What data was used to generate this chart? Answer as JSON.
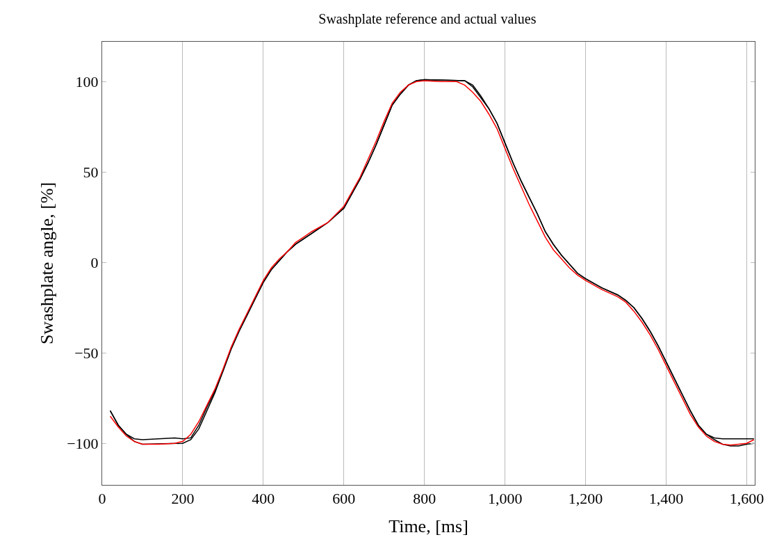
{
  "chart_data": {
    "type": "line",
    "title": "Swashplate reference and actual values",
    "xlabel": "Time, [ms]",
    "ylabel": "Swashplate angle, [%]",
    "xlim": [
      0,
      1620
    ],
    "xticks": [
      0,
      {
        "value": 200,
        "label": "200"
      },
      {
        "value": 400,
        "label": "400"
      },
      {
        "value": 600,
        "label": "600"
      },
      {
        "value": 800,
        "label": "800"
      },
      {
        "value": 1000,
        "label": "1,000"
      },
      {
        "value": 1200,
        "label": "1,200"
      },
      {
        "value": 1400,
        "label": "1,400"
      },
      {
        "value": 1600,
        "label": "1,600"
      }
    ],
    "ylim": [
      -123,
      122
    ],
    "yticks": [
      {
        "value": -100,
        "label": "−100"
      },
      {
        "value": -50,
        "label": "−50"
      },
      0,
      50,
      100
    ],
    "grid": "x",
    "marker": "none",
    "line_style": "solid",
    "series": [
      {
        "color": "#ff0000",
        "x": [
          20,
          40,
          60,
          80,
          100,
          140,
          180,
          200,
          220,
          240,
          260,
          280,
          300,
          320,
          340,
          360,
          380,
          400,
          420,
          440,
          460,
          480,
          500,
          520,
          560,
          600,
          640,
          660,
          680,
          700,
          720,
          740,
          760,
          780,
          800,
          840,
          880,
          900,
          920,
          940,
          960,
          980,
          1000,
          1020,
          1040,
          1060,
          1080,
          1100,
          1120,
          1140,
          1160,
          1180,
          1200,
          1240,
          1280,
          1300,
          1320,
          1340,
          1360,
          1380,
          1400,
          1420,
          1440,
          1460,
          1480,
          1500,
          1520,
          1540,
          1560,
          1580,
          1600,
          1618
        ],
        "values": [
          -85,
          -91,
          -96,
          -99,
          -100.5,
          -100.5,
          -100,
          -99,
          -95,
          -88,
          -79,
          -70,
          -59,
          -47,
          -37,
          -28,
          -19,
          -10,
          -3,
          2,
          6,
          11,
          14,
          17,
          22,
          31,
          47,
          57,
          67,
          78,
          88,
          94,
          98,
          100,
          100.5,
          100,
          100,
          98,
          94,
          89,
          82,
          74,
          63,
          52,
          42,
          32,
          23,
          14,
          7,
          2,
          -3,
          -7,
          -10,
          -15,
          -19,
          -22,
          -27,
          -33,
          -40,
          -48,
          -57,
          -66,
          -75,
          -84,
          -91,
          -96,
          -99,
          -100.5,
          -101,
          -100.5,
          -100,
          -98
        ]
      },
      {
        "color": "#000000",
        "x": [
          20,
          40,
          60,
          80,
          100,
          200,
          220,
          240,
          260,
          280,
          300,
          320,
          340,
          360,
          380,
          400,
          420,
          440,
          460,
          480,
          520,
          560,
          600,
          640,
          660,
          680,
          700,
          720,
          740,
          760,
          780,
          800,
          900,
          920,
          940,
          960,
          980,
          1000,
          1020,
          1040,
          1060,
          1080,
          1100,
          1120,
          1140,
          1160,
          1180,
          1200,
          1240,
          1280,
          1300,
          1320,
          1340,
          1360,
          1380,
          1400,
          1420,
          1440,
          1460,
          1480,
          1500,
          1520,
          1540,
          1560,
          1580,
          1600,
          1618
        ],
        "values": [
          -82,
          -90,
          -95,
          -99,
          -100.5,
          -100,
          -98,
          -92,
          -82,
          -72,
          -60,
          -48,
          -38,
          -29,
          -20,
          -11,
          -4,
          1,
          6,
          10,
          16,
          22,
          30,
          46,
          55,
          65,
          76,
          87,
          93,
          98,
          100.5,
          101,
          100.5,
          97,
          91,
          85,
          77,
          66,
          55,
          45,
          36,
          27,
          17,
          10,
          4,
          -1,
          -6,
          -9,
          -14,
          -18,
          -21,
          -25,
          -31,
          -38,
          -46,
          -55,
          -64,
          -73,
          -82,
          -90,
          -95,
          -98,
          -100.5,
          -101.5,
          -101.5,
          -100.5,
          -100
        ]
      },
      {
        "color": "#000000",
        "x": [
          20,
          40,
          60,
          80,
          100,
          140,
          180,
          200,
          220,
          240,
          260,
          280,
          300,
          320,
          340,
          360,
          380,
          400,
          420,
          440,
          460,
          480,
          520,
          560,
          600,
          640,
          660,
          680,
          700,
          720,
          740,
          760,
          780,
          800,
          900,
          920,
          940,
          960,
          980,
          1000,
          1020,
          1040,
          1060,
          1080,
          1100,
          1120,
          1140,
          1160,
          1180,
          1200,
          1240,
          1280,
          1300,
          1320,
          1340,
          1360,
          1380,
          1400,
          1420,
          1440,
          1460,
          1480,
          1500,
          1520,
          1540,
          1580,
          1618
        ],
        "values": [
          -82,
          -90,
          -95,
          -97.5,
          -98,
          -97.5,
          -97,
          -97.5,
          -97,
          -90,
          -80,
          -71,
          -60,
          -48,
          -38,
          -29,
          -20,
          -11,
          -4,
          1,
          6,
          10,
          16,
          22,
          30,
          46,
          55,
          65,
          76,
          87,
          93,
          98,
          100.5,
          101,
          100.5,
          98,
          92,
          85,
          77,
          66,
          55,
          45,
          36,
          27,
          17,
          10,
          4,
          -1,
          -6,
          -9,
          -14,
          -18,
          -21,
          -25,
          -31,
          -38,
          -46,
          -55,
          -64,
          -73,
          -82,
          -90,
          -95,
          -97,
          -97.5,
          -97.5,
          -97.5
        ]
      }
    ]
  }
}
